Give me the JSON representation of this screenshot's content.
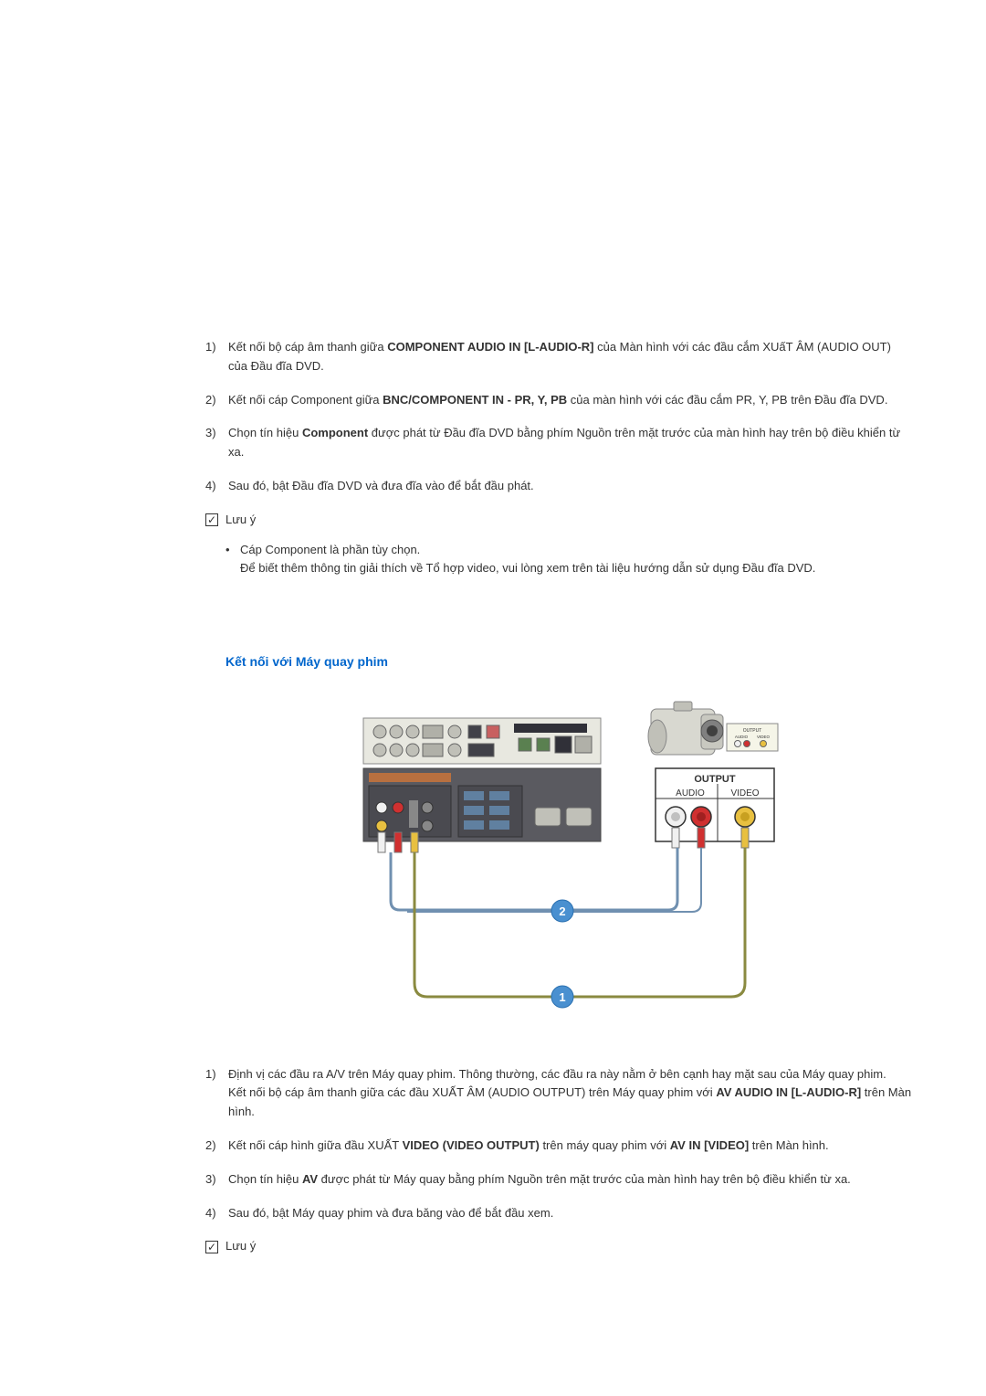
{
  "section1": {
    "steps": [
      {
        "num": "1)",
        "parts": [
          {
            "t": "Kết nối bộ cáp âm thanh giữa ",
            "b": false
          },
          {
            "t": "COMPONENT AUDIO IN [L-AUDIO-R]",
            "b": true
          },
          {
            "t": " của Màn hình với các đầu cắm XUấT ÂM (AUDIO OUT) của Đầu đĩa DVD.",
            "b": false
          }
        ]
      },
      {
        "num": "2)",
        "parts": [
          {
            "t": "Kết nối cáp Component giữa ",
            "b": false
          },
          {
            "t": "BNC/COMPONENT IN - PR, Y, PB",
            "b": true
          },
          {
            "t": " của màn hình với các đầu cắm PR, Y, PB trên Đầu đĩa DVD.",
            "b": false
          }
        ]
      },
      {
        "num": "3)",
        "parts": [
          {
            "t": "Chọn tín hiệu ",
            "b": false
          },
          {
            "t": "Component",
            "b": true
          },
          {
            "t": " được phát từ Đầu đĩa DVD bằng phím Nguồn trên mặt trước của màn hình hay trên bộ điều khiển từ xa.",
            "b": false
          }
        ]
      },
      {
        "num": "4)",
        "parts": [
          {
            "t": "Sau đó, bật Đầu đĩa DVD và đưa đĩa vào để bắt đầu phát.",
            "b": false
          }
        ]
      }
    ],
    "note_label": "Lưu ý",
    "bullet": {
      "line1": "Cáp Component là phần tùy chọn.",
      "line2": "Để biết thêm thông tin giải thích về Tổ hợp video, vui lòng xem trên tài liệu hướng dẫn sử dụng Đầu đĩa DVD."
    }
  },
  "section2": {
    "heading": "Kết nối với Máy quay phim",
    "diagram": {
      "output_label": "OUTPUT",
      "audio_label": "AUDIO",
      "video_label": "VIDEO",
      "small_output": "OUTPUT",
      "small_audio": "AUDIO",
      "small_video": "VIDEO",
      "marker1": "1",
      "marker2": "2",
      "colors": {
        "panel_bg": "#e8e8e0",
        "panel_border": "#888888",
        "device_body": "#d8d8d0",
        "cable1": "#8a8a40",
        "cable2": "#7090b0",
        "jack_red": "#d03030",
        "jack_white": "#f0f0f0",
        "jack_yellow": "#e8c040",
        "marker_bg": "#4a90d0",
        "label_box_bg": "#ffffff",
        "label_box_border": "#333333"
      }
    },
    "steps": [
      {
        "num": "1)",
        "parts": [
          {
            "t": "Định vị các đầu ra A/V trên Máy quay phim. Thông thường, các đầu ra này nằm ở bên cạnh hay mặt sau của Máy quay phim.",
            "b": false
          },
          {
            "br": true
          },
          {
            "t": "Kết nối bộ cáp âm thanh giữa các đầu XUẤT ÂM (AUDIO OUTPUT) trên Máy quay phim với ",
            "b": false
          },
          {
            "t": "AV AUDIO IN [L-AUDIO-R]",
            "b": true
          },
          {
            "t": " trên Màn hình.",
            "b": false
          }
        ]
      },
      {
        "num": "2)",
        "parts": [
          {
            "t": "Kết nối cáp hình giữa đầu XUẤT ",
            "b": false
          },
          {
            "t": "VIDEO (VIDEO OUTPUT)",
            "b": true
          },
          {
            "t": " trên máy quay phim với ",
            "b": false
          },
          {
            "t": "AV IN [VIDEO]",
            "b": true
          },
          {
            "t": " trên Màn hình.",
            "b": false
          }
        ]
      },
      {
        "num": "3)",
        "parts": [
          {
            "t": "Chọn tín hiệu ",
            "b": false
          },
          {
            "t": "AV",
            "b": true
          },
          {
            "t": " được phát từ Máy quay bằng phím Nguồn trên mặt trước của màn hình hay trên bộ điều khiển từ xa.",
            "b": false
          }
        ]
      },
      {
        "num": "4)",
        "parts": [
          {
            "t": "Sau đó, bật Máy quay phim và đưa băng vào để bắt đầu xem.",
            "b": false
          }
        ]
      }
    ],
    "note_label": "Lưu ý"
  }
}
